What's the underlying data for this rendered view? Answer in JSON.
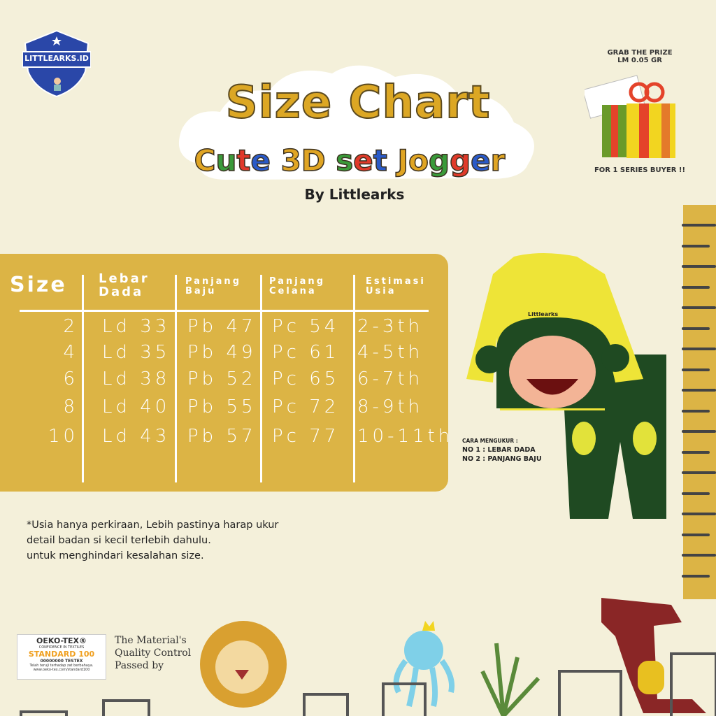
{
  "logo": {
    "text": "LITTLEARKS.ID",
    "color": "#2a47a8"
  },
  "header": {
    "title": "Size Chart",
    "subtitle": "Cute 3D set Jogger",
    "byline": "By Littlearks",
    "title_color": "#dca724",
    "subtitle_colors": [
      "#e0a524",
      "#3a9a3a",
      "#e03a2a",
      "#2a5ac8",
      "#e0a524"
    ]
  },
  "prize": {
    "line1": "GRAB THE PRIZE",
    "line2": "LM 0.05 GR",
    "footer": "FOR 1 SERIES BUYER !!"
  },
  "table": {
    "color": "#dcb445",
    "headers": [
      {
        "l1": "Size",
        "l2": ""
      },
      {
        "l1": "Lebar",
        "l2": "Dada"
      },
      {
        "l1": "Panjang",
        "l2": "Baju"
      },
      {
        "l1": "Panjang",
        "l2": "Celana"
      },
      {
        "l1": "Estimasi",
        "l2": "Usia"
      }
    ],
    "rows": [
      [
        "2",
        "Ld 33",
        "Pb 47",
        "Pc 54",
        "2-3th"
      ],
      [
        "4",
        "Ld 35",
        "Pb 49",
        "Pc 61",
        "4-5th"
      ],
      [
        "6",
        "Ld 38",
        "Pb 52",
        "Pc 65",
        "6-7th"
      ],
      [
        "8",
        "Ld 40",
        "Pb 55",
        "Pc 72",
        "8-9th"
      ],
      [
        "10",
        "Ld 43",
        "Pb 57",
        "Pc 77",
        "10-11th"
      ]
    ]
  },
  "product": {
    "shirt_label": "Littlearks",
    "shirt_color": "#eee437",
    "pants_color": "#1f4a22"
  },
  "how_to": {
    "title": "CARA MENGUKUR :",
    "line1": "NO 1 : LEBAR DADA",
    "line2": "NO 2 : PANJANG BAJU"
  },
  "note": {
    "line1": "*Usia hanya perkiraan, Lebih pastinya harap ukur",
    "line2": "detail badan si kecil terlebih dahulu.",
    "line3": "untuk menghindari kesalahan size."
  },
  "oeko": {
    "brand": "OEKO-TEX®",
    "tagline": "CONFIDENCE IN TEXTILES",
    "standard": "STANDARD 100",
    "code": "00000000 TESTEX",
    "info1": "Telah teruji terhadap zat berbahaya.",
    "info2": "www.oeko-tex.com/standard100"
  },
  "quality": {
    "line1": "The Material's",
    "line2": "Quality Control",
    "line3": "Passed by"
  }
}
